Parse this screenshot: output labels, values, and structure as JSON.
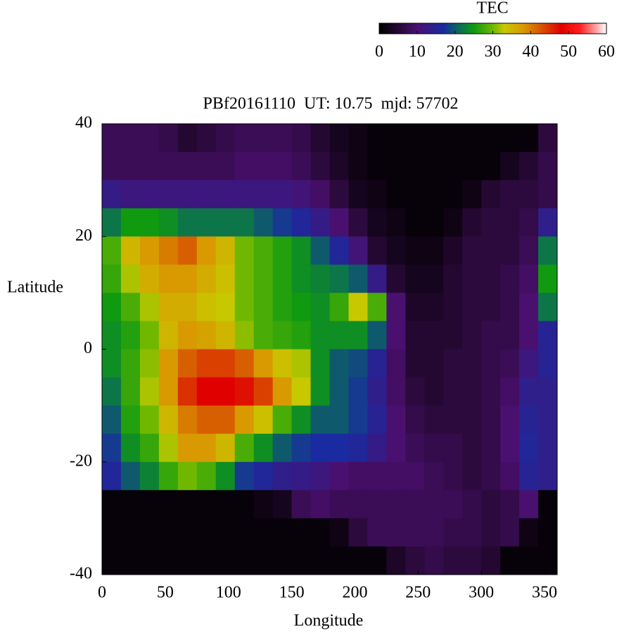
{
  "chart_data": {
    "type": "heatmap",
    "title": "PBf20161110  UT: 10.75  mjd: 57702",
    "xlabel": "Longitude",
    "ylabel": "Latitude",
    "xlim": [
      0,
      360
    ],
    "ylim": [
      -40,
      40
    ],
    "xticks": [
      0,
      50,
      100,
      150,
      200,
      250,
      300,
      350
    ],
    "yticks": [
      -40,
      -20,
      0,
      20,
      40
    ],
    "x": [
      7.5,
      22.5,
      37.5,
      52.5,
      67.5,
      82.5,
      97.5,
      112.5,
      127.5,
      142.5,
      157.5,
      172.5,
      187.5,
      202.5,
      217.5,
      232.5,
      247.5,
      262.5,
      277.5,
      292.5,
      307.5,
      322.5,
      337.5,
      352.5
    ],
    "y": [
      37.5,
      32.5,
      27.5,
      22.5,
      17.5,
      12.5,
      7.5,
      2.5,
      -2.5,
      -7.5,
      -12.5,
      -17.5,
      -22.5,
      -27.5,
      -32.5,
      -37.5
    ],
    "z": [
      [
        8,
        8,
        8,
        7,
        5,
        6,
        7,
        8,
        8,
        8,
        7,
        5,
        3,
        2,
        1,
        1,
        1,
        1,
        1,
        1,
        1,
        1,
        1,
        6
      ],
      [
        8,
        8,
        8,
        8,
        8,
        8,
        8,
        9,
        9,
        9,
        8,
        6,
        4,
        2,
        1,
        1,
        1,
        1,
        1,
        1,
        1,
        3,
        5,
        7
      ],
      [
        13,
        12,
        12,
        12,
        12,
        12,
        12,
        12,
        12,
        12,
        11,
        9,
        6,
        3,
        2,
        1,
        1,
        1,
        1,
        2,
        5,
        6,
        6,
        7
      ],
      [
        22,
        25,
        25,
        24,
        22,
        22,
        22,
        22,
        20,
        18,
        16,
        13,
        10,
        6,
        3,
        2,
        1,
        1,
        2,
        5,
        6,
        6,
        7,
        14
      ],
      [
        28,
        35,
        38,
        40,
        42,
        38,
        35,
        30,
        28,
        26,
        24,
        20,
        16,
        11,
        5,
        3,
        2,
        2,
        4,
        6,
        6,
        6,
        8,
        22
      ],
      [
        27,
        32,
        36,
        38,
        38,
        36,
        34,
        30,
        28,
        26,
        24,
        23,
        22,
        20,
        13,
        5,
        3,
        3,
        5,
        6,
        6,
        7,
        9,
        25
      ],
      [
        25,
        28,
        32,
        36,
        36,
        34,
        33,
        30,
        28,
        26,
        25,
        24,
        27,
        33,
        28,
        10,
        4,
        4,
        5,
        6,
        6,
        7,
        10,
        22
      ],
      [
        24,
        26,
        30,
        35,
        38,
        37,
        35,
        31,
        28,
        27,
        26,
        24,
        24,
        24,
        20,
        10,
        5,
        5,
        5,
        6,
        7,
        7,
        10,
        15
      ],
      [
        24,
        27,
        31,
        38,
        42,
        44,
        44,
        42,
        38,
        34,
        32,
        24,
        20,
        19,
        15,
        9,
        5,
        5,
        6,
        6,
        7,
        8,
        12,
        15
      ],
      [
        22,
        27,
        32,
        38,
        45,
        48,
        48,
        47,
        44,
        38,
        33,
        24,
        20,
        18,
        14,
        9,
        6,
        5,
        6,
        6,
        7,
        9,
        14,
        14
      ],
      [
        20,
        26,
        30,
        35,
        40,
        42,
        42,
        38,
        34,
        28,
        24,
        20,
        20,
        18,
        15,
        10,
        7,
        6,
        6,
        6,
        7,
        10,
        15,
        14
      ],
      [
        18,
        24,
        27,
        32,
        38,
        38,
        35,
        28,
        24,
        20,
        18,
        17,
        17,
        16,
        13,
        10,
        8,
        7,
        7,
        6,
        7,
        10,
        16,
        14
      ],
      [
        16,
        20,
        23,
        27,
        30,
        28,
        24,
        18,
        16,
        14,
        13,
        12,
        10,
        9,
        9,
        9,
        9,
        8,
        7,
        6,
        7,
        9,
        15,
        14
      ],
      [
        1,
        1,
        1,
        1,
        1,
        1,
        1,
        1,
        2,
        3,
        8,
        9,
        8,
        8,
        8,
        8,
        8,
        8,
        8,
        7,
        6,
        7,
        10,
        1
      ],
      [
        1,
        1,
        1,
        1,
        1,
        1,
        1,
        1,
        1,
        1,
        1,
        1,
        2,
        6,
        8,
        8,
        8,
        8,
        7,
        7,
        6,
        7,
        2,
        1
      ],
      [
        1,
        1,
        1,
        1,
        1,
        1,
        1,
        1,
        1,
        1,
        1,
        1,
        1,
        1,
        1,
        4,
        6,
        7,
        6,
        6,
        5,
        1,
        1,
        1
      ]
    ],
    "colorbar": {
      "label": "TEC",
      "lim": [
        0,
        60
      ],
      "ticks": [
        0,
        10,
        20,
        30,
        40,
        50,
        60
      ]
    },
    "colorscale": [
      [
        0,
        "#000000"
      ],
      [
        5,
        "#250832"
      ],
      [
        10,
        "#4a1070"
      ],
      [
        17,
        "#1a2aa0"
      ],
      [
        21,
        "#0a6a5a"
      ],
      [
        25,
        "#109a10"
      ],
      [
        30,
        "#70b800"
      ],
      [
        33,
        "#c8c800"
      ],
      [
        38,
        "#d89a00"
      ],
      [
        43,
        "#d85000"
      ],
      [
        48,
        "#e00000"
      ],
      [
        53,
        "#ff2020"
      ],
      [
        57,
        "#ff9a9a"
      ],
      [
        60,
        "#ffffff"
      ]
    ]
  }
}
